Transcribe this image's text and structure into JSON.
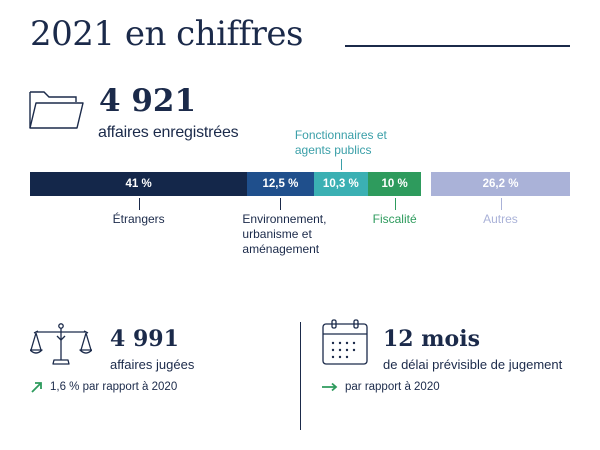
{
  "header": {
    "title": "2021 en chiffres"
  },
  "registered": {
    "value": "4 921",
    "label": "affaires enregistrées"
  },
  "chart_data": {
    "type": "bar",
    "orientation": "horizontal-stacked",
    "categories": [
      "Étrangers",
      "Environnement, urbanisme et aménagement",
      "Fonctionnaires et agents publics",
      "Fiscalité",
      "Autres"
    ],
    "values": [
      41,
      12.5,
      10.3,
      10,
      26.2
    ],
    "value_labels": [
      "41 %",
      "12,5 %",
      "10,3 %",
      "10 %",
      "26,2 %"
    ],
    "label_lines": [
      [
        "Étrangers"
      ],
      [
        "Environnement,",
        "urbanisme et",
        "aménagement"
      ],
      [
        "Fonctionnaires et",
        "agents publics"
      ],
      [
        "Fiscalité"
      ],
      [
        "Autres"
      ]
    ],
    "label_positions": [
      "below",
      "below",
      "above",
      "below",
      "below"
    ],
    "colors": [
      "#14274a",
      "#1f4f8c",
      "#3bb0b3",
      "#2e9b5d",
      "#aab2d8"
    ],
    "label_colors": [
      "#1b2a4a",
      "#1b2a4a",
      "#3a9fa8",
      "#2e9b5d",
      "#aab2d8"
    ],
    "unit": "%"
  },
  "judged": {
    "value": "4 991",
    "label": "affaires jugées",
    "trend_icon": "arrow-up-right-icon",
    "trend_text": "1,6 % par rapport à 2020",
    "trend_color": "#2e9b5d"
  },
  "delay": {
    "value": "12 mois",
    "label": "de délai prévisible de jugement",
    "trend_icon": "arrow-right-icon",
    "trend_text": "par rapport à 2020",
    "trend_color": "#2e9b5d"
  }
}
